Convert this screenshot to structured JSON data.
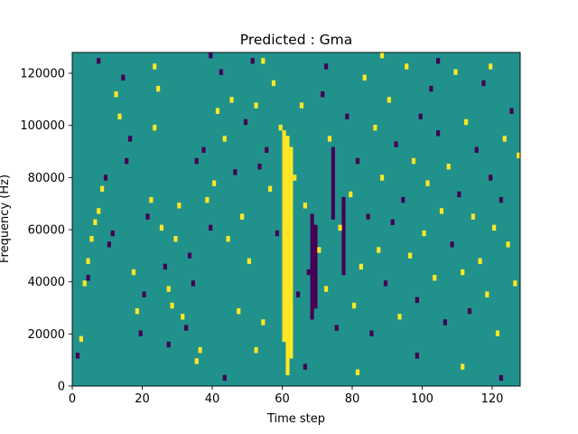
{
  "chart_data": {
    "type": "heatmap",
    "title": "Predicted : Gma",
    "xlabel": "Time step",
    "ylabel": "Frequency (Hz)",
    "xlim": [
      0,
      128
    ],
    "ylim": [
      0,
      128000
    ],
    "x_ticks": [
      0,
      20,
      40,
      60,
      80,
      100,
      120
    ],
    "y_ticks": [
      0,
      20000,
      40000,
      60000,
      80000,
      100000,
      120000
    ],
    "grid": false,
    "legend": "none",
    "n_time_steps": 128,
    "n_frequency_bins": 60,
    "colormap": "viridis",
    "colors": {
      "background_value": "#21918c",
      "high_value": "#fde725",
      "low_value": "#440154"
    },
    "value_legend": {
      "-1": "low (dark purple)",
      "0": "background (teal)",
      "1": "high (yellow)"
    },
    "dense_columns": [
      {
        "x": 60,
        "value": 1,
        "rows_from": 8,
        "rows_to": 45
      },
      {
        "x": 61,
        "value": 1,
        "rows_from": 2,
        "rows_to": 44
      },
      {
        "x": 62,
        "value": 1,
        "rows_from": 5,
        "rows_to": 42
      },
      {
        "x": 68,
        "value": -1,
        "rows_from": 12,
        "rows_to": 30
      },
      {
        "x": 69,
        "value": -1,
        "rows_from": 14,
        "rows_to": 28
      },
      {
        "x": 74,
        "value": -1,
        "rows_from": 30,
        "rows_to": 42
      },
      {
        "x": 77,
        "value": -1,
        "rows_from": 20,
        "rows_to": 33
      }
    ],
    "cells": [
      [
        1,
        5,
        -1
      ],
      [
        2,
        8,
        1
      ],
      [
        3,
        18,
        1
      ],
      [
        4,
        22,
        1
      ],
      [
        5,
        26,
        1
      ],
      [
        6,
        29,
        1
      ],
      [
        7,
        31,
        1
      ],
      [
        4,
        19,
        -1
      ],
      [
        8,
        35,
        1
      ],
      [
        9,
        37,
        -1
      ],
      [
        10,
        25,
        -1
      ],
      [
        11,
        27,
        -1
      ],
      [
        12,
        52,
        1
      ],
      [
        13,
        48,
        1
      ],
      [
        14,
        55,
        -1
      ],
      [
        15,
        40,
        -1
      ],
      [
        16,
        44,
        -1
      ],
      [
        17,
        20,
        1
      ],
      [
        18,
        13,
        1
      ],
      [
        19,
        9,
        -1
      ],
      [
        20,
        16,
        -1
      ],
      [
        21,
        30,
        -1
      ],
      [
        22,
        33,
        1
      ],
      [
        23,
        46,
        1
      ],
      [
        24,
        53,
        1
      ],
      [
        25,
        28,
        1
      ],
      [
        26,
        21,
        -1
      ],
      [
        27,
        17,
        1
      ],
      [
        28,
        14,
        1
      ],
      [
        29,
        26,
        1
      ],
      [
        30,
        32,
        1
      ],
      [
        31,
        12,
        1
      ],
      [
        32,
        10,
        -1
      ],
      [
        33,
        23,
        -1
      ],
      [
        34,
        18,
        -1
      ],
      [
        35,
        40,
        -1
      ],
      [
        36,
        6,
        1
      ],
      [
        37,
        42,
        -1
      ],
      [
        38,
        33,
        1
      ],
      [
        39,
        28,
        -1
      ],
      [
        40,
        36,
        1
      ],
      [
        41,
        49,
        1
      ],
      [
        42,
        56,
        -1
      ],
      [
        43,
        44,
        1
      ],
      [
        44,
        26,
        1
      ],
      [
        45,
        51,
        1
      ],
      [
        46,
        38,
        -1
      ],
      [
        47,
        13,
        1
      ],
      [
        48,
        30,
        1
      ],
      [
        49,
        47,
        -1
      ],
      [
        50,
        22,
        1
      ],
      [
        51,
        58,
        -1
      ],
      [
        52,
        50,
        1
      ],
      [
        53,
        39,
        -1
      ],
      [
        54,
        11,
        1
      ],
      [
        55,
        42,
        -1
      ],
      [
        56,
        35,
        1
      ],
      [
        57,
        54,
        1
      ],
      [
        58,
        27,
        -1
      ],
      [
        59,
        46,
        1
      ],
      [
        63,
        37,
        1
      ],
      [
        64,
        16,
        -1
      ],
      [
        65,
        50,
        1
      ],
      [
        66,
        32,
        1
      ],
      [
        67,
        20,
        -1
      ],
      [
        70,
        24,
        1
      ],
      [
        71,
        52,
        -1
      ],
      [
        72,
        17,
        1
      ],
      [
        73,
        44,
        1
      ],
      [
        75,
        10,
        -1
      ],
      [
        76,
        28,
        1
      ],
      [
        78,
        48,
        -1
      ],
      [
        79,
        34,
        1
      ],
      [
        80,
        14,
        1
      ],
      [
        81,
        40,
        -1
      ],
      [
        82,
        21,
        1
      ],
      [
        83,
        55,
        1
      ],
      [
        84,
        30,
        -1
      ],
      [
        85,
        9,
        -1
      ],
      [
        86,
        46,
        1
      ],
      [
        87,
        24,
        1
      ],
      [
        88,
        37,
        1
      ],
      [
        89,
        18,
        -1
      ],
      [
        90,
        51,
        1
      ],
      [
        91,
        29,
        -1
      ],
      [
        92,
        43,
        -1
      ],
      [
        93,
        12,
        1
      ],
      [
        94,
        33,
        -1
      ],
      [
        95,
        57,
        1
      ],
      [
        96,
        23,
        1
      ],
      [
        97,
        40,
        1
      ],
      [
        98,
        15,
        -1
      ],
      [
        99,
        48,
        -1
      ],
      [
        100,
        27,
        1
      ],
      [
        101,
        36,
        1
      ],
      [
        102,
        53,
        -1
      ],
      [
        103,
        19,
        1
      ],
      [
        104,
        45,
        -1
      ],
      [
        105,
        31,
        1
      ],
      [
        106,
        11,
        -1
      ],
      [
        107,
        39,
        1
      ],
      [
        108,
        25,
        -1
      ],
      [
        109,
        56,
        1
      ],
      [
        110,
        34,
        -1
      ],
      [
        111,
        20,
        1
      ],
      [
        112,
        47,
        1
      ],
      [
        113,
        13,
        -1
      ],
      [
        114,
        30,
        1
      ],
      [
        115,
        42,
        -1
      ],
      [
        116,
        22,
        1
      ],
      [
        117,
        54,
        -1
      ],
      [
        118,
        16,
        1
      ],
      [
        119,
        37,
        -1
      ],
      [
        120,
        28,
        1
      ],
      [
        121,
        9,
        1
      ],
      [
        122,
        33,
        -1
      ],
      [
        123,
        44,
        1
      ],
      [
        124,
        25,
        1
      ],
      [
        125,
        49,
        -1
      ],
      [
        126,
        18,
        1
      ],
      [
        127,
        41,
        1
      ],
      [
        27,
        7,
        -1
      ],
      [
        35,
        4,
        1
      ],
      [
        43,
        1,
        -1
      ],
      [
        52,
        6,
        1
      ],
      [
        66,
        3,
        -1
      ],
      [
        81,
        2,
        1
      ],
      [
        98,
        5,
        -1
      ],
      [
        111,
        3,
        1
      ],
      [
        122,
        1,
        -1
      ],
      [
        7,
        58,
        -1
      ],
      [
        23,
        57,
        1
      ],
      [
        39,
        59,
        -1
      ],
      [
        54,
        58,
        1
      ],
      [
        72,
        57,
        -1
      ],
      [
        88,
        59,
        1
      ],
      [
        104,
        58,
        -1
      ],
      [
        119,
        57,
        1
      ]
    ]
  }
}
